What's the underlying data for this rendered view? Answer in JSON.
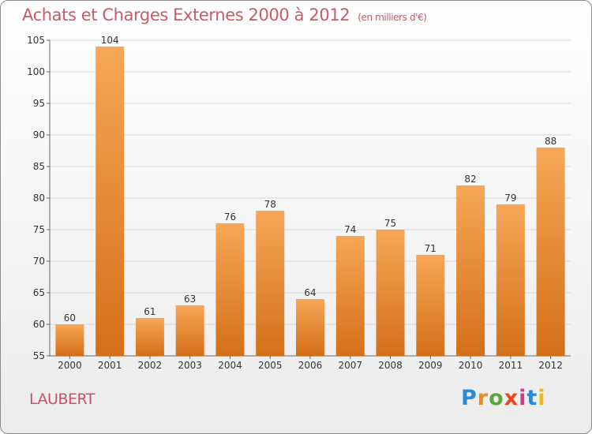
{
  "header": {
    "title": "Achats et Charges Externes 2000 à 2012",
    "unit": "(en milliers d'€)"
  },
  "footer": {
    "commune": "LAUBERT",
    "brand": "Proxiti"
  },
  "colors": {
    "bar_top": "#f6a757",
    "bar_bottom": "#d46f19",
    "title": "#c95a66",
    "commune": "#c8506a",
    "grid": "#d8d8d8"
  },
  "chart_data": {
    "type": "bar",
    "categories": [
      "2000",
      "2001",
      "2002",
      "2003",
      "2004",
      "2005",
      "2006",
      "2007",
      "2008",
      "2009",
      "2010",
      "2011",
      "2012"
    ],
    "values": [
      60,
      104,
      61,
      63,
      76,
      78,
      64,
      74,
      75,
      71,
      82,
      79,
      88
    ],
    "title": "Achats et Charges Externes 2000 à 2012",
    "subtitle": "(en milliers d'€)",
    "xlabel": "",
    "ylabel": "",
    "ylim": [
      55,
      105
    ],
    "yticks": [
      55,
      60,
      65,
      70,
      75,
      80,
      85,
      90,
      95,
      100,
      105
    ],
    "grid": true,
    "legend": "none"
  }
}
